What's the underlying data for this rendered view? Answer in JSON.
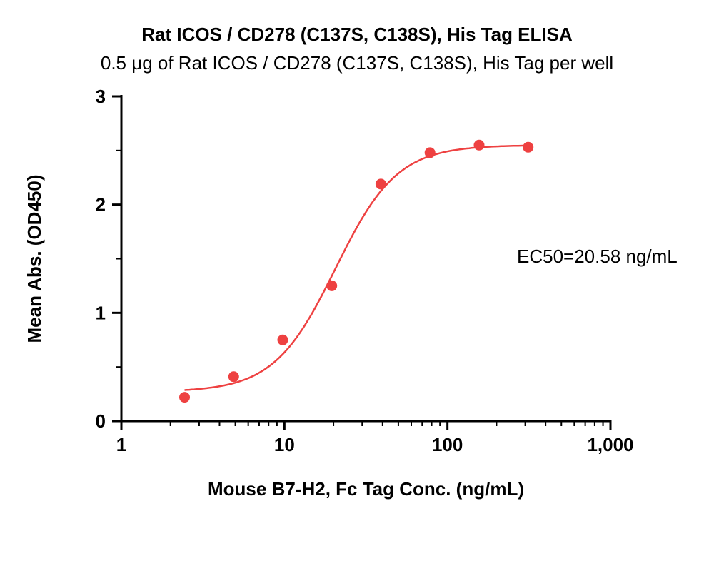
{
  "title": "Rat ICOS / CD278 (C137S, C138S), His Tag ELISA",
  "subtitle": "0.5 μg of Rat ICOS / CD278 (C137S, C138S), His Tag per well",
  "annotation": "EC50=20.58 ng/mL",
  "chart_data": {
    "type": "scatter",
    "series_name": "Mean Abs. (OD450) vs Mouse B7-H2 Fc Tag concentration",
    "x": [
      2.441,
      4.883,
      9.766,
      19.53,
      39.06,
      78.13,
      156.3,
      312.5
    ],
    "y": [
      0.22,
      0.41,
      0.75,
      1.25,
      2.19,
      2.48,
      2.55,
      2.53
    ],
    "fit": {
      "model": "4PL",
      "ec50": 20.58,
      "hill": 2.3,
      "bottom": 0.27,
      "top": 2.55
    },
    "xlabel": "Mouse B7-H2, Fc Tag Conc. (ng/mL)",
    "ylabel": "Mean Abs. (OD450)",
    "xscale": "log",
    "xlim": [
      1,
      1000
    ],
    "ylim": [
      0,
      3
    ],
    "xticks": [
      {
        "value": 1,
        "label": "1"
      },
      {
        "value": 10,
        "label": "10"
      },
      {
        "value": 100,
        "label": "100"
      },
      {
        "value": 1000,
        "label": "1,000"
      }
    ],
    "yticks": [
      {
        "value": 0,
        "label": "0"
      },
      {
        "value": 1,
        "label": "1"
      },
      {
        "value": 2,
        "label": "2"
      },
      {
        "value": 3,
        "label": "3"
      }
    ],
    "grid": false,
    "legend": "none",
    "point_color": "#ee4141",
    "line_color": "#ee4141",
    "axis_color": "#000000"
  }
}
